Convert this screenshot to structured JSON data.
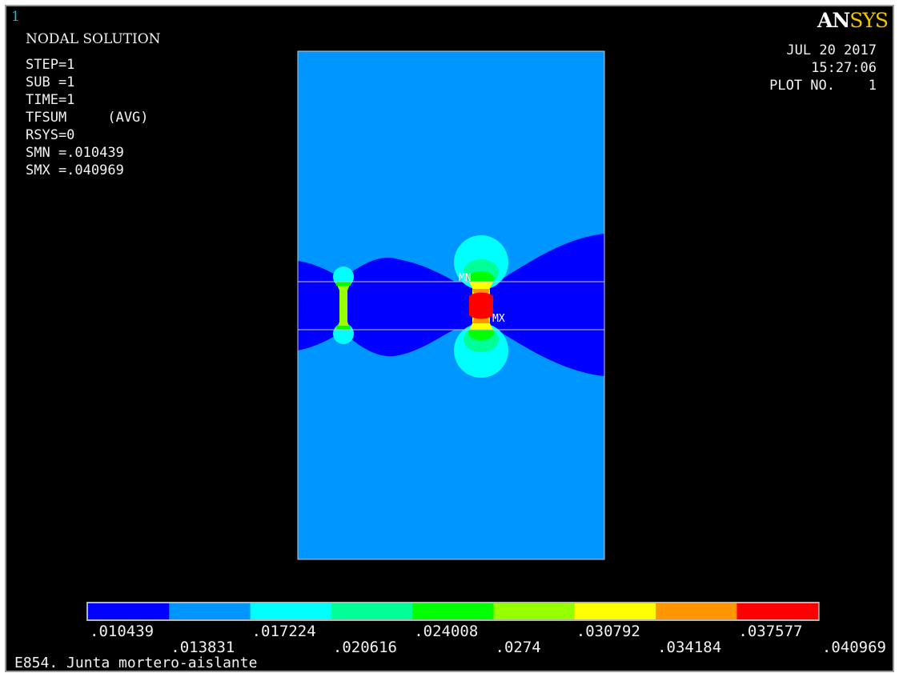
{
  "window": {
    "number": "1",
    "title": "NODAL SOLUTION",
    "info_lines": [
      "STEP=1",
      "SUB =1",
      "TIME=1",
      "TFSUM     (AVG)",
      "RSYS=0",
      "SMN =.010439",
      "SMX =.040969"
    ],
    "date": "JUL 20 2017",
    "time": "15:27:06",
    "plot_label": "PLOT NO.",
    "plot_number": "1",
    "caption": "E854. Junta mortero-aislante"
  },
  "logo": {
    "part1": "AN",
    "part2": "SYS"
  },
  "markers": {
    "min": "MN",
    "max": "MX"
  },
  "legend": {
    "values": [
      ".010439",
      ".013831",
      ".017224",
      ".020616",
      ".024008",
      ".0274",
      ".030792",
      ".034184",
      ".037577",
      ".040969"
    ],
    "colors": [
      "#0000ff",
      "#0096ff",
      "#00ffff",
      "#00ff96",
      "#00ff00",
      "#96ff00",
      "#ffff00",
      "#ff9600",
      "#ff0000"
    ]
  },
  "colors": {
    "background": "#000000",
    "model_fill": "#0096ff",
    "low_band": "#0000ff",
    "mid_band": "#00ffff",
    "outline": "#c8c8c8"
  }
}
